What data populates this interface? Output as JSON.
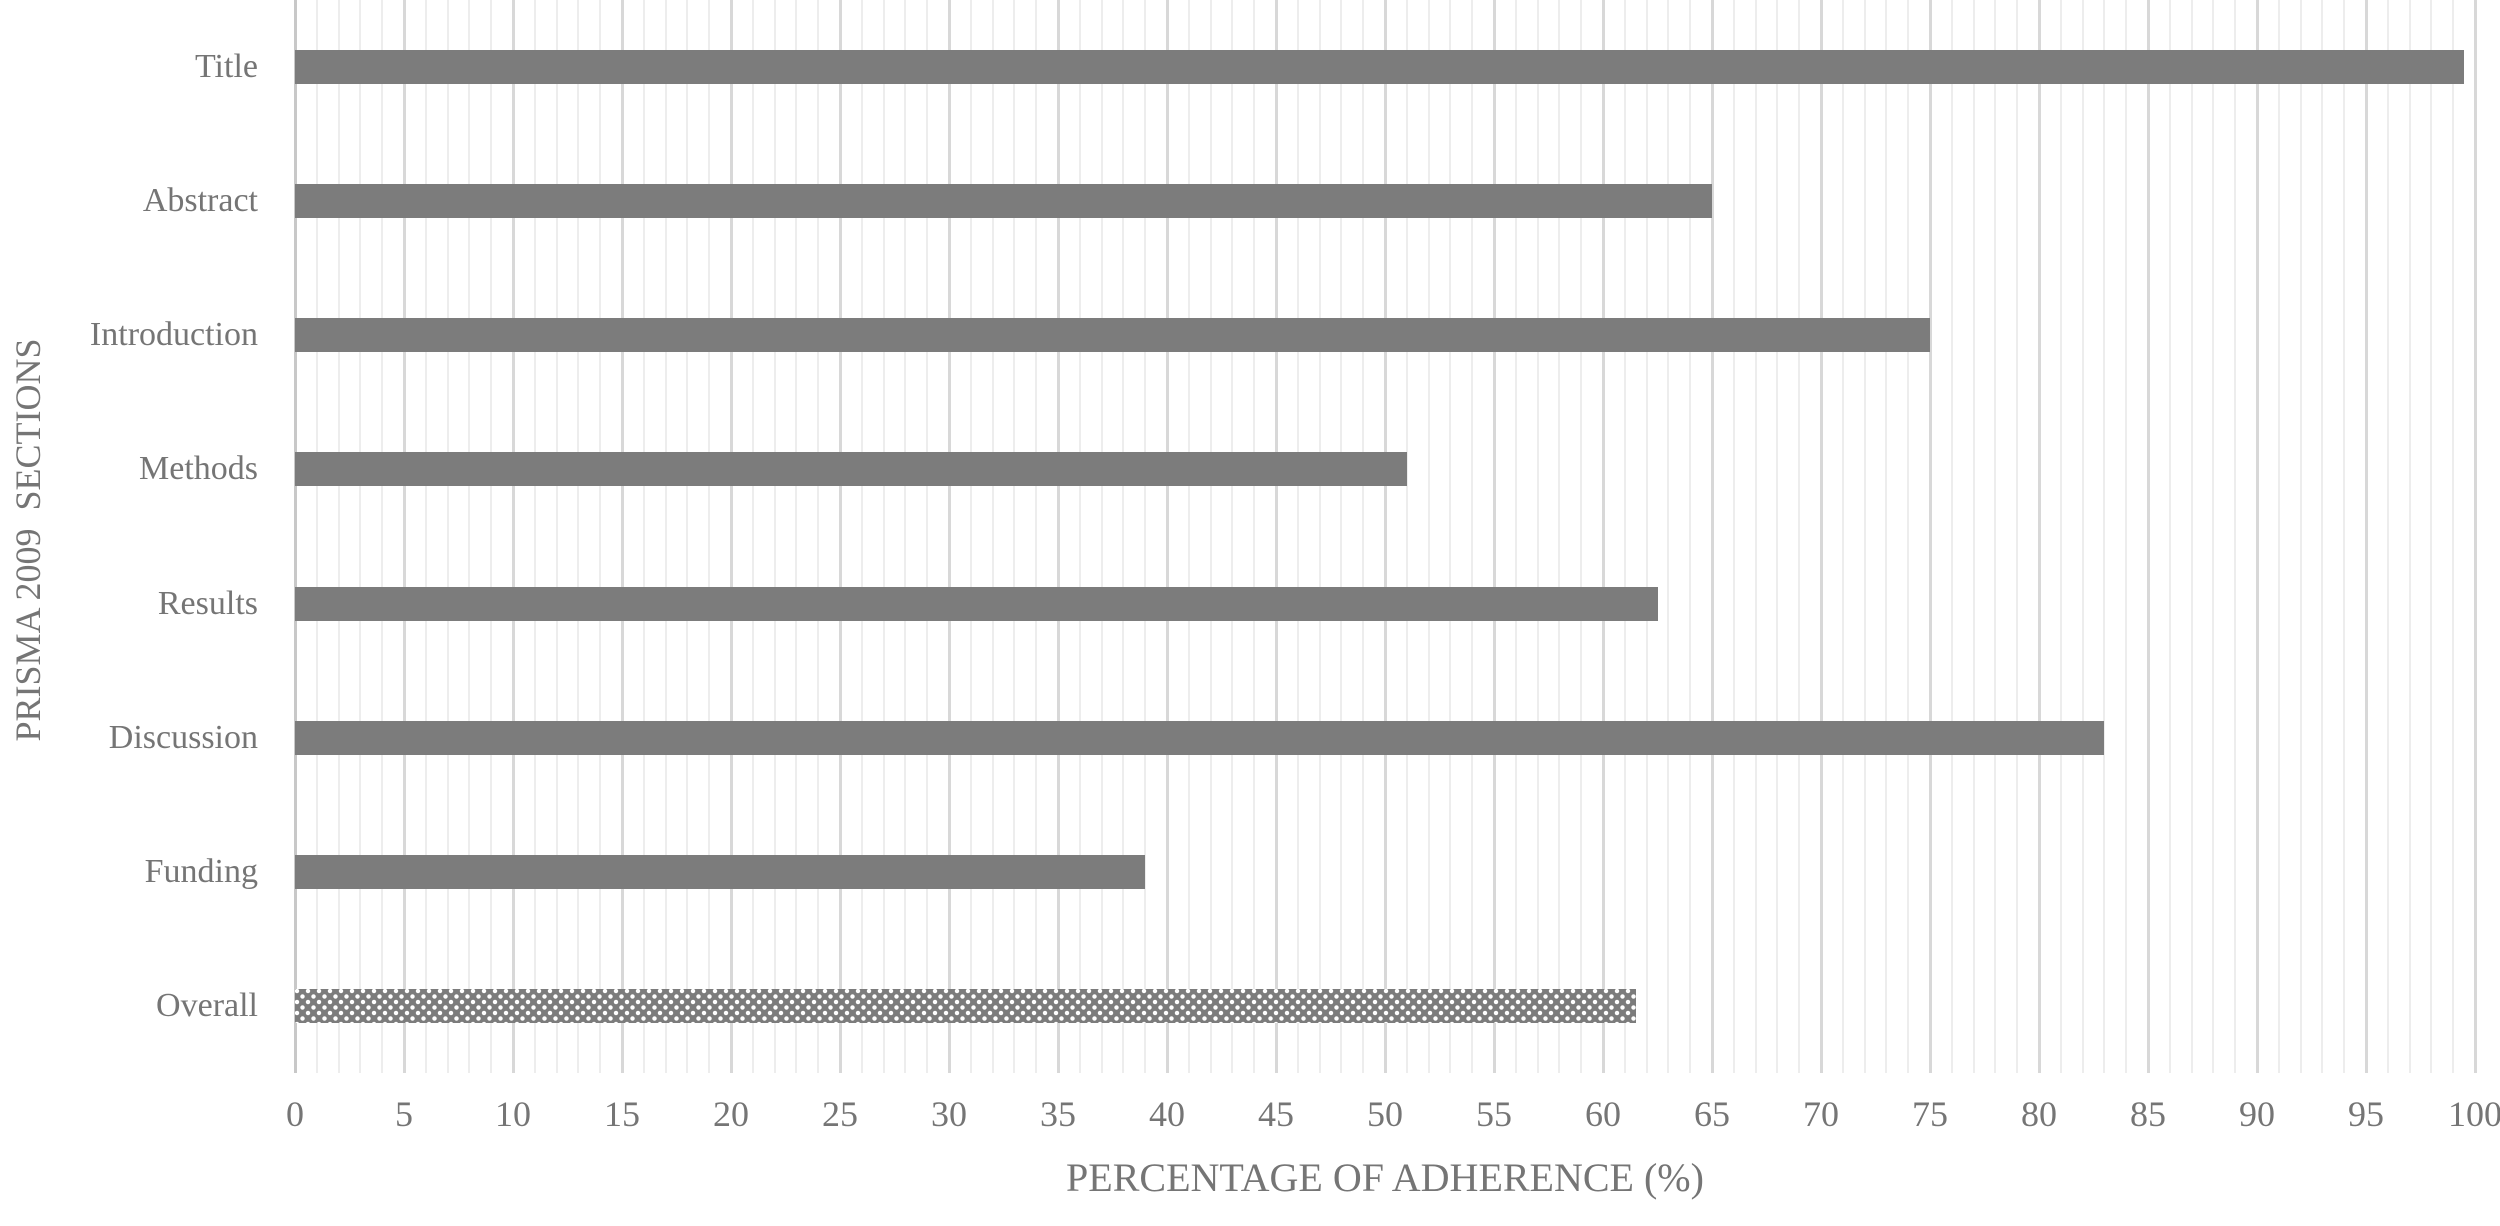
{
  "chart_data": {
    "type": "bar",
    "orientation": "horizontal",
    "title": "",
    "categories": [
      "Title",
      "Abstract",
      "Introduction",
      "Methods",
      "Results",
      "Discussion",
      "Funding",
      "Overall"
    ],
    "values": [
      99.5,
      65,
      75,
      51,
      62.5,
      83,
      39,
      61.5
    ],
    "xlabel": "PERCENTAGE OF ADHERENCE (%)",
    "ylabel": "PRISMA 2009  SECTIONS",
    "xlim": [
      0,
      100
    ],
    "x_ticks": [
      0,
      5,
      10,
      15,
      20,
      25,
      30,
      35,
      40,
      45,
      50,
      55,
      60,
      65,
      70,
      75,
      80,
      85,
      90,
      95,
      100
    ],
    "x_tick_labels": [
      "0",
      "5",
      "10",
      "15",
      "20",
      "25",
      "30",
      "35",
      "40",
      "45",
      "50",
      "55",
      "60",
      "65",
      "70",
      "75",
      "80",
      "85",
      "90",
      "95",
      "100"
    ],
    "minor_grid_step": 1,
    "major_grid_step": 5,
    "grid": true,
    "legend": false,
    "patterned_category": "Overall",
    "colors": {
      "bar_fill": "#7c7c7c",
      "pattern_dot": "#ffffff",
      "minor_gridline": "#ededed",
      "major_gridline": "#d8d8d8",
      "axis_line": "#c8c8c8",
      "text": "#757575"
    }
  }
}
